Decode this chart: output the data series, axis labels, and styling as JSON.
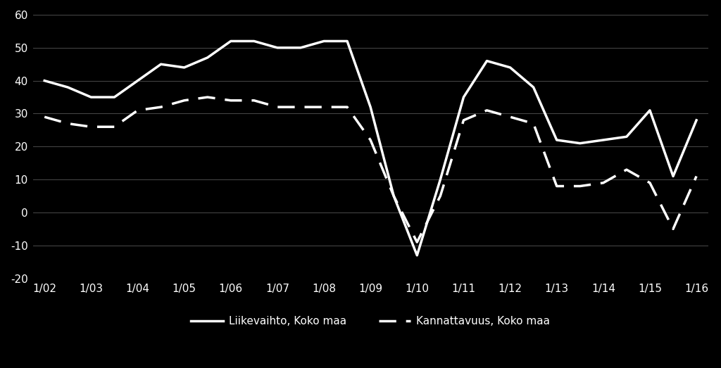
{
  "background_color": "#000000",
  "text_color": "#ffffff",
  "grid_color": "#4a4a4a",
  "line1_color": "#ffffff",
  "line2_color": "#ffffff",
  "x_tick_positions": [
    0,
    2,
    4,
    6,
    8,
    10,
    12,
    14,
    16,
    18,
    20,
    22,
    24,
    26,
    28
  ],
  "x_labels": [
    "1/02",
    "1/03",
    "1/04",
    "1/05",
    "1/06",
    "1/07",
    "1/08",
    "1/09",
    "1/10",
    "1/11",
    "1/12",
    "1/13",
    "1/14",
    "1/15",
    "1/16"
  ],
  "liikevaihto_x": [
    0,
    1,
    2,
    3,
    4,
    5,
    6,
    7,
    8,
    9,
    10,
    11,
    12,
    13,
    14,
    15,
    16,
    17,
    18,
    19,
    20,
    21,
    22,
    23,
    24,
    25,
    26,
    27,
    28
  ],
  "liikevaihto": [
    40,
    38,
    35,
    35,
    40,
    45,
    44,
    47,
    52,
    52,
    50,
    50,
    52,
    52,
    32,
    5,
    -13,
    10,
    35,
    46,
    44,
    38,
    22,
    21,
    22,
    23,
    31,
    11,
    28
  ],
  "kannattavuus_x": [
    0,
    1,
    2,
    3,
    4,
    5,
    6,
    7,
    8,
    9,
    10,
    11,
    12,
    13,
    14,
    15,
    16,
    17,
    18,
    19,
    20,
    21,
    22,
    23,
    24,
    25,
    26,
    27,
    28
  ],
  "kannattavuus": [
    29,
    27,
    26,
    26,
    31,
    32,
    34,
    35,
    34,
    34,
    32,
    32,
    32,
    32,
    22,
    5,
    -9,
    5,
    28,
    31,
    29,
    27,
    8,
    8,
    9,
    13,
    9,
    -5,
    11
  ],
  "ylim": [
    -20,
    60
  ],
  "yticks": [
    -20,
    -10,
    0,
    10,
    20,
    30,
    40,
    50,
    60
  ],
  "legend1": "Liikevaihto, Koko maa",
  "legend2": "Kannattavuus, Koko maa",
  "legend_fontsize": 11,
  "tick_fontsize": 11,
  "linewidth": 2.5
}
